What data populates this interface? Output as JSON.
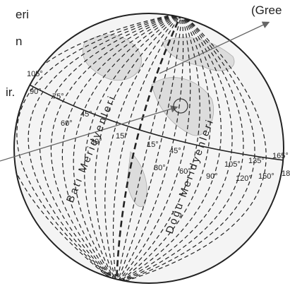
{
  "margin_texts": [
    "eri",
    "n",
    "ir.",
    "(Gree"
  ],
  "degree_labels": [
    "105°",
    "90°",
    "75°",
    "60°",
    "45°",
    "30°",
    "15°",
    "15°",
    "30°",
    "45°",
    "60°",
    "90°",
    "105°",
    "120°",
    "135°",
    "150°",
    "165°",
    "18"
  ],
  "west_label": "Batı Meridyenleri",
  "east_label": "Doğu Meridyenleri"
}
